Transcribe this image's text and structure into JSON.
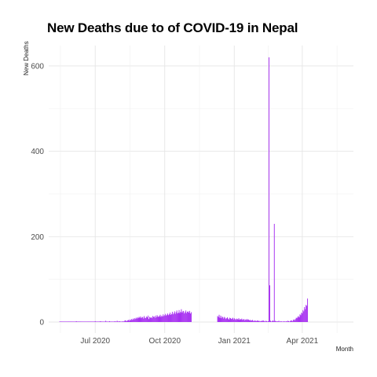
{
  "chart_data": {
    "type": "bar",
    "title": "New Deaths due to of COVID-19 in Nepal",
    "xlabel": "Month",
    "ylabel": "New Deaths",
    "ylim": [
      0,
      650
    ],
    "y_ticks": [
      0,
      200,
      400,
      600
    ],
    "x_ticks": [
      {
        "label": "Jul 2020",
        "date": "2020-07-01"
      },
      {
        "label": "Oct 2020",
        "date": "2020-10-01"
      },
      {
        "label": "Jan 2021",
        "date": "2021-01-01"
      },
      {
        "label": "Apr 2021",
        "date": "2021-04-01"
      }
    ],
    "x_range": [
      "2020-05-15",
      "2021-05-20"
    ],
    "grid": true,
    "bar_color": "#a020f0",
    "series_segments": [
      {
        "start": "2020-05-15",
        "values": [
          0,
          0,
          1,
          0,
          0,
          0,
          0,
          0,
          1,
          0,
          0,
          0,
          0,
          1,
          0,
          0,
          1,
          0,
          0,
          0,
          0,
          1,
          2,
          0,
          0,
          0,
          1,
          0,
          0,
          0,
          0,
          0,
          0,
          0,
          0,
          0,
          0,
          0,
          0,
          0,
          0,
          0,
          0,
          0,
          0,
          1,
          0,
          2,
          1,
          0,
          0,
          1,
          1,
          0,
          2,
          0,
          1,
          1,
          0,
          0,
          1,
          3,
          0,
          1,
          0,
          0,
          2,
          0,
          1,
          0,
          0,
          0,
          0,
          2,
          1,
          0,
          3,
          0,
          1,
          2,
          1,
          1,
          0,
          0,
          2,
          1,
          3,
          4,
          3,
          2,
          4,
          5,
          3,
          6,
          4,
          7,
          5,
          8,
          6,
          9,
          7,
          10,
          8,
          11,
          9,
          12,
          10,
          13,
          9,
          11,
          12,
          8,
          14,
          10,
          9,
          13,
          11,
          15,
          7,
          12,
          10,
          11,
          9,
          14,
          12,
          13,
          10,
          15,
          11,
          16,
          13,
          12,
          14,
          17,
          12,
          15,
          13,
          18,
          14,
          16,
          19,
          15,
          17,
          20,
          16,
          18,
          22,
          17,
          19,
          24,
          18,
          21,
          25,
          19,
          23,
          27,
          20,
          22,
          28,
          21,
          24,
          30,
          22,
          25,
          26,
          20,
          23,
          27,
          21,
          24,
          25,
          22,
          26,
          20,
          23
        ]
      },
      {
        "start": "2020-12-10",
        "values": [
          14,
          12,
          17,
          10,
          15,
          9,
          13,
          11,
          8,
          12,
          10,
          7,
          9,
          11,
          8,
          6,
          10,
          9,
          7,
          8,
          10,
          6,
          9,
          7,
          5,
          8,
          7,
          6,
          9,
          5,
          7,
          6,
          8,
          5,
          6,
          7,
          4,
          6,
          5,
          7,
          5,
          6,
          4,
          5,
          3,
          4,
          5,
          3,
          2,
          4,
          3,
          2,
          3,
          4,
          2,
          3,
          1,
          2,
          3,
          2,
          4,
          3,
          2,
          1,
          3,
          2,
          1,
          2,
          620,
          86,
          3,
          1,
          2,
          4,
          2,
          230,
          3,
          2,
          1,
          2,
          1,
          3,
          1,
          1,
          2,
          1,
          0,
          1,
          2,
          1,
          1,
          2,
          1,
          3,
          2,
          1,
          2,
          4,
          3,
          2,
          5,
          6,
          4,
          7,
          10,
          9,
          12,
          14,
          11,
          18,
          16,
          22,
          20,
          28,
          25,
          35,
          30,
          40,
          38,
          55
        ]
      }
    ]
  }
}
